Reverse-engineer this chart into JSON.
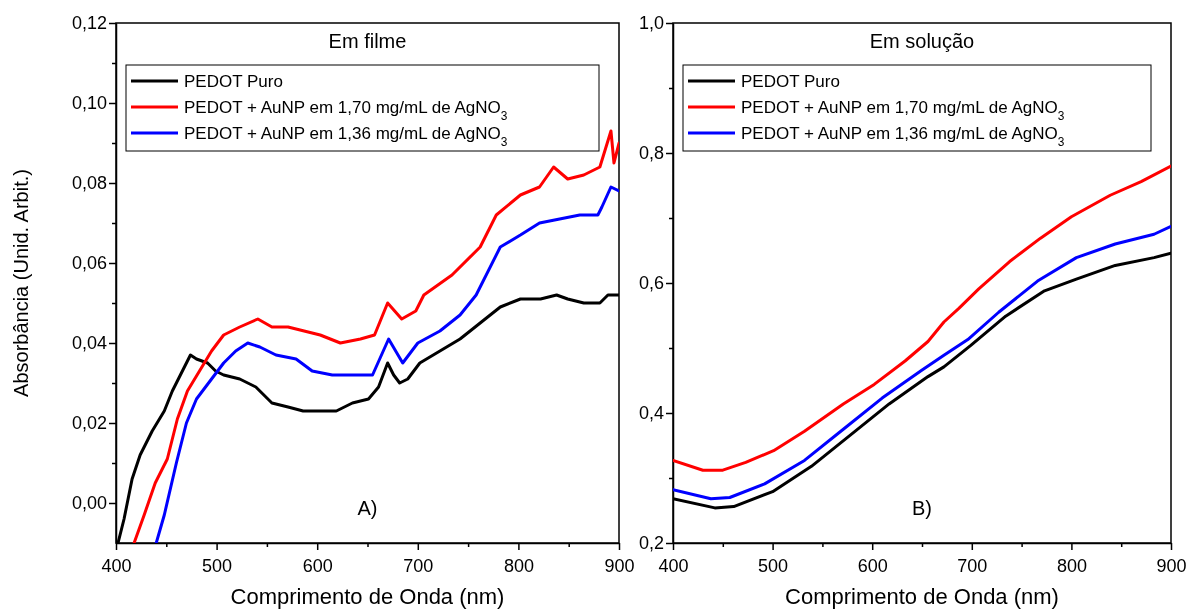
{
  "chart_data": [
    {
      "type": "line",
      "title": "Em filme",
      "xlabel": "Comprimento de Onda (nm)",
      "ylabel": "Absorbância (Unid. Arbit.)",
      "annotations": [
        "A)"
      ],
      "legend": "top left",
      "grid": false,
      "line_style": "solid",
      "marker": "none",
      "xlim": [
        400,
        900
      ],
      "xticks": [
        400,
        {
          "value": 450,
          "label": null
        },
        500,
        {
          "value": 550,
          "label": null
        },
        600,
        {
          "value": 650,
          "label": null
        },
        700,
        {
          "value": 750,
          "label": null
        },
        800,
        {
          "value": 850,
          "label": null
        },
        900
      ],
      "ylim": [
        -0.01,
        0.12
      ],
      "yticks": [
        {
          "value": 0,
          "label": "0,00"
        },
        {
          "value": 0.01,
          "label": null
        },
        {
          "value": 0.02,
          "label": "0,02"
        },
        {
          "value": 0.03,
          "label": null
        },
        {
          "value": 0.04,
          "label": "0,04"
        },
        {
          "value": 0.05,
          "label": null
        },
        {
          "value": 0.06,
          "label": "0,06"
        },
        {
          "value": 0.07,
          "label": null
        },
        {
          "value": 0.08,
          "label": "0,08"
        },
        {
          "value": 0.09,
          "label": null
        },
        {
          "value": 0.1,
          "label": "0,10"
        },
        {
          "value": 0.11,
          "label": null
        },
        {
          "value": 0.12,
          "label": "0,12"
        }
      ],
      "series": [
        {
          "name": "PEDOT Puro",
          "color": "#000000",
          "x": [
            402,
            408,
            416,
            424,
            436,
            448,
            456,
            464,
            474,
            480,
            491,
            499,
            507,
            523,
            539,
            555,
            571,
            586,
            603,
            619,
            635,
            651,
            661,
            670,
            676,
            682,
            690,
            702,
            722,
            742,
            762,
            782,
            802,
            822,
            838,
            849,
            865,
            881,
            889,
            900
          ],
          "values": [
            -0.01,
            -0.004,
            0.006,
            0.012,
            0.018,
            0.023,
            0.028,
            0.032,
            0.037,
            0.036,
            0.035,
            0.033,
            0.032,
            0.031,
            0.029,
            0.025,
            0.024,
            0.023,
            0.023,
            0.023,
            0.025,
            0.026,
            0.029,
            0.035,
            0.032,
            0.03,
            0.031,
            0.035,
            0.038,
            0.041,
            0.045,
            0.049,
            0.051,
            0.051,
            0.052,
            0.051,
            0.05,
            0.05,
            0.052,
            0.052
          ]
        },
        {
          "name": "PEDOT + AuNP em 1,70 mg/mL de AgNO$_{3}$",
          "color": "#ff0000",
          "x": [
            418,
            428,
            439,
            451,
            461,
            471,
            483,
            495,
            507,
            523,
            541,
            555,
            571,
            587,
            603,
            623,
            643,
            657,
            670,
            684,
            698,
            706,
            734,
            762,
            778,
            802,
            821,
            835,
            849,
            865,
            881,
            892,
            895,
            900
          ],
          "values": [
            -0.01,
            -0.003,
            0.005,
            0.011,
            0.021,
            0.028,
            0.033,
            0.038,
            0.042,
            0.044,
            0.046,
            0.044,
            0.044,
            0.043,
            0.042,
            0.04,
            0.041,
            0.042,
            0.05,
            0.046,
            0.048,
            0.052,
            0.057,
            0.064,
            0.072,
            0.077,
            0.079,
            0.084,
            0.081,
            0.082,
            0.084,
            0.093,
            0.085,
            0.09
          ]
        },
        {
          "name": "PEDOT + AuNP em 1,36 mg/mL de AgNO$_{3}$",
          "color": "#0000ff",
          "x": [
            440,
            448,
            460,
            470,
            480,
            495,
            507,
            519,
            531,
            543,
            559,
            579,
            595,
            615,
            635,
            655,
            671,
            685,
            700,
            722,
            742,
            758,
            782,
            802,
            821,
            841,
            861,
            879,
            883,
            892,
            900
          ],
          "values": [
            -0.01,
            -0.003,
            0.01,
            0.02,
            0.026,
            0.031,
            0.035,
            0.038,
            0.04,
            0.039,
            0.037,
            0.036,
            0.033,
            0.032,
            0.032,
            0.032,
            0.041,
            0.035,
            0.04,
            0.043,
            0.047,
            0.052,
            0.064,
            0.067,
            0.07,
            0.071,
            0.072,
            0.072,
            0.074,
            0.079,
            0.078
          ]
        }
      ]
    },
    {
      "type": "line",
      "title": "Em solução",
      "xlabel": "Comprimento de Onda (nm)",
      "annotations": [
        "B)"
      ],
      "legend": "top left",
      "grid": false,
      "line_style": "solid",
      "marker": "none",
      "xlim": [
        400,
        900
      ],
      "xticks": [
        400,
        {
          "value": 450,
          "label": null
        },
        500,
        {
          "value": 550,
          "label": null
        },
        600,
        {
          "value": 650,
          "label": null
        },
        700,
        {
          "value": 750,
          "label": null
        },
        800,
        {
          "value": 850,
          "label": null
        },
        900
      ],
      "ylim": [
        0.2,
        1.0
      ],
      "yticks": [
        {
          "value": 0.2,
          "label": "0,2"
        },
        {
          "value": 0.3,
          "label": null
        },
        {
          "value": 0.4,
          "label": "0,4"
        },
        {
          "value": 0.5,
          "label": null
        },
        {
          "value": 0.6,
          "label": "0,6"
        },
        {
          "value": 0.7,
          "label": null
        },
        {
          "value": 0.8,
          "label": "0,8"
        },
        {
          "value": 0.9,
          "label": null
        },
        {
          "value": 1.0,
          "label": "1,0"
        }
      ],
      "series": [
        {
          "name": "PEDOT Puro",
          "color": "#000000",
          "x": [
            400,
            442,
            461,
            500,
            539,
            578,
            617,
            656,
            672,
            699,
            734,
            773,
            805,
            844,
            883,
            900
          ],
          "values": [
            0.268,
            0.254,
            0.256,
            0.279,
            0.318,
            0.366,
            0.414,
            0.456,
            0.471,
            0.504,
            0.549,
            0.588,
            0.606,
            0.627,
            0.639,
            0.646
          ]
        },
        {
          "name": "PEDOT + AuNP em 1,70 mg/mL de AgNO$_{3}$",
          "color": "#ff0000",
          "x": [
            400,
            430,
            450,
            473,
            501,
            532,
            571,
            602,
            633,
            656,
            672,
            687,
            707,
            738,
            769,
            800,
            839,
            870,
            900
          ],
          "values": [
            0.327,
            0.312,
            0.312,
            0.324,
            0.342,
            0.372,
            0.414,
            0.444,
            0.48,
            0.51,
            0.54,
            0.561,
            0.591,
            0.633,
            0.669,
            0.702,
            0.735,
            0.756,
            0.78
          ]
        },
        {
          "name": "PEDOT + AuNP em 1,36 mg/mL de AgNO$_{3}$",
          "color": "#0000ff",
          "x": [
            400,
            438,
            457,
            492,
            532,
            571,
            610,
            649,
            672,
            696,
            727,
            766,
            805,
            844,
            883,
            900
          ],
          "values": [
            0.282,
            0.268,
            0.27,
            0.291,
            0.327,
            0.375,
            0.423,
            0.465,
            0.489,
            0.513,
            0.555,
            0.603,
            0.639,
            0.66,
            0.675,
            0.687
          ]
        }
      ]
    }
  ]
}
